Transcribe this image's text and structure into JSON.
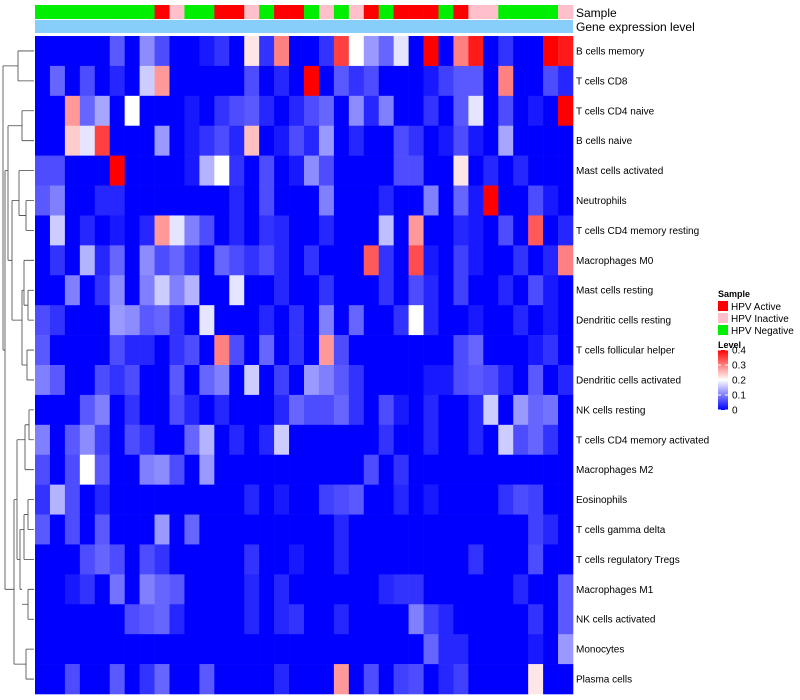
{
  "chart_data": {
    "type": "heatmap",
    "title": "",
    "row_labels": [
      "B cells memory",
      "T cells CD8",
      "T cells CD4 naive",
      "B cells naive",
      "Mast cells activated",
      "Neutrophils",
      "T cells CD4 memory resting",
      "Macrophages M0",
      "Mast cells resting",
      "Dendritic cells resting",
      "T cells follicular helper",
      "Dendritic cells activated",
      "NK cells resting",
      "T cells CD4 memory activated",
      "Macrophages M2",
      "Eosinophils",
      "T cells gamma delta",
      "T cells regulatory  Tregs",
      "Macrophages M1",
      "NK cells activated",
      "Monocytes",
      "Plasma cells"
    ],
    "n_columns": 36,
    "column_annotations": {
      "sample_label": "Sample",
      "expression_label": "Gene expression level",
      "sample_groups": [
        "Negative",
        "Negative",
        "Negative",
        "Negative",
        "Negative",
        "Negative",
        "Negative",
        "Negative",
        "Active",
        "Inactive",
        "Negative",
        "Negative",
        "Active",
        "Active",
        "Inactive",
        "Negative",
        "Active",
        "Active",
        "Negative",
        "Inactive",
        "Negative",
        "Inactive",
        "Active",
        "Negative",
        "Active",
        "Active",
        "Active",
        "Negative",
        "Active",
        "Inactive",
        "Inactive",
        "Negative",
        "Negative",
        "Negative",
        "Negative",
        "Inactive"
      ]
    },
    "values": [
      [
        0,
        0,
        0,
        0,
        0,
        0.07,
        0,
        0.11,
        0.06,
        0,
        0,
        0.02,
        0.04,
        0,
        0.22,
        0.04,
        0.3,
        0,
        0,
        0.04,
        0.35,
        0.2,
        0.12,
        0.08,
        0.18,
        0,
        0.4,
        0,
        0.3,
        0.38,
        0,
        0.04,
        0,
        0.0,
        0.4,
        0.38
      ],
      [
        0,
        0.08,
        0,
        0.06,
        0,
        0.03,
        0,
        0.16,
        0.28,
        0.0,
        0,
        0,
        0,
        0,
        0.06,
        0,
        0.03,
        0,
        0.4,
        0,
        0.07,
        0.04,
        0.06,
        0,
        0,
        0,
        0.02,
        0.05,
        0.07,
        0.07,
        0,
        0.3,
        0,
        0,
        0.06,
        0.03
      ],
      [
        0,
        0,
        0.28,
        0.08,
        0.13,
        0,
        0.2,
        0,
        0,
        0,
        0.02,
        0,
        0.04,
        0.06,
        0.07,
        0.03,
        0,
        0.03,
        0.06,
        0.08,
        0,
        0.11,
        0.03,
        0.1,
        0.0,
        0,
        0.04,
        0,
        0.07,
        0.18,
        0,
        0.06,
        0,
        0.02,
        0,
        0.4
      ],
      [
        0,
        0,
        0.24,
        0.18,
        0.35,
        0,
        0,
        0,
        0.12,
        0,
        0.02,
        0.04,
        0.06,
        0.03,
        0.25,
        0,
        0.02,
        0.06,
        0.03,
        0.12,
        0,
        0.03,
        0,
        0,
        0.06,
        0.04,
        0,
        0.02,
        0.06,
        0.02,
        0,
        0.13,
        0,
        0,
        0,
        0
      ],
      [
        0.06,
        0.06,
        0,
        0,
        0,
        0.4,
        0,
        0,
        0,
        0,
        0.02,
        0.14,
        0.2,
        0.04,
        0,
        0.06,
        0,
        0.02,
        0.11,
        0.06,
        0,
        0,
        0,
        0,
        0.06,
        0.06,
        0,
        0,
        0.22,
        0,
        0.03,
        0,
        0.03,
        0,
        0,
        0
      ],
      [
        0.07,
        0.1,
        0,
        0,
        0.03,
        0.03,
        0,
        0,
        0,
        0,
        0,
        0,
        0,
        0.03,
        0,
        0.06,
        0,
        0,
        0,
        0.1,
        0,
        0,
        0,
        0.03,
        0,
        0,
        0.1,
        0.0,
        0.08,
        0.02,
        0.4,
        0,
        0.0,
        0.06,
        0.02,
        0
      ],
      [
        0,
        0.16,
        0,
        0.03,
        0,
        0.02,
        0,
        0.03,
        0.28,
        0.18,
        0.1,
        0.06,
        0,
        0.03,
        0,
        0.04,
        0.03,
        0,
        0,
        0.03,
        0,
        0,
        0,
        0.15,
        0.0,
        0.28,
        0,
        0,
        0.03,
        0.02,
        0,
        0.06,
        0,
        0.33,
        0,
        0.03
      ],
      [
        0,
        0.04,
        0,
        0.14,
        0.03,
        0.08,
        0,
        0.11,
        0.06,
        0.08,
        0.04,
        0,
        0.08,
        0.06,
        0.04,
        0.06,
        0.03,
        0,
        0.04,
        0,
        0,
        0,
        0.33,
        0.04,
        0,
        0.34,
        0.02,
        0,
        0.05,
        0.02,
        0,
        0,
        0.04,
        0,
        0.03,
        0.3
      ],
      [
        0,
        0,
        0.1,
        0,
        0.04,
        0.11,
        0,
        0.1,
        0.16,
        0.1,
        0.14,
        0,
        0,
        0.18,
        0,
        0,
        0.03,
        0,
        0,
        0.04,
        0,
        0,
        0,
        0.04,
        0,
        0.06,
        0.03,
        0,
        0.05,
        0,
        0,
        0.03,
        0,
        0.06,
        0.02,
        0
      ],
      [
        0.06,
        0.04,
        0,
        0,
        0,
        0.12,
        0.11,
        0.07,
        0.08,
        0.04,
        0,
        0.18,
        0,
        0,
        0,
        0.03,
        0,
        0.04,
        0,
        0.1,
        0,
        0.08,
        0,
        0,
        0.04,
        0.2,
        0.03,
        0,
        0,
        0.02,
        0,
        0,
        0.03,
        0,
        0.02,
        0
      ],
      [
        0.07,
        0,
        0,
        0,
        0,
        0.06,
        0.03,
        0.03,
        0,
        0.04,
        0.06,
        0,
        0.3,
        0.06,
        0,
        0.08,
        0,
        0.04,
        0,
        0.28,
        0.06,
        0,
        0,
        0,
        0,
        0,
        0,
        0,
        0.06,
        0.08,
        0,
        0,
        0,
        0.02,
        0.04,
        0
      ],
      [
        0.1,
        0.07,
        0,
        0,
        0.06,
        0.04,
        0.06,
        0,
        0,
        0.07,
        0,
        0.08,
        0.1,
        0,
        0.16,
        0,
        0.05,
        0,
        0.12,
        0.1,
        0.07,
        0.04,
        0,
        0,
        0,
        0,
        0.02,
        0.02,
        0.06,
        0.07,
        0.06,
        0.03,
        0,
        0.07,
        0,
        0.03
      ],
      [
        0,
        0,
        0,
        0.07,
        0.1,
        0,
        0.04,
        0,
        0,
        0.06,
        0.03,
        0,
        0.03,
        0,
        0,
        0,
        0.03,
        0.08,
        0.06,
        0.06,
        0.08,
        0.04,
        0,
        0.06,
        0.02,
        0,
        0.03,
        0,
        0,
        0.03,
        0.16,
        0,
        0.12,
        0.08,
        0.09,
        0
      ],
      [
        0.1,
        0,
        0.07,
        0.11,
        0.05,
        0,
        0.06,
        0.04,
        0,
        0,
        0.08,
        0.14,
        0,
        0.03,
        0,
        0.03,
        0.16,
        0,
        0,
        0,
        0,
        0,
        0,
        0.04,
        0,
        0,
        0.03,
        0,
        0,
        0.03,
        0,
        0.16,
        0.06,
        0.08,
        0.04,
        0
      ],
      [
        0.06,
        0,
        0.06,
        0.2,
        0.07,
        0,
        0,
        0.1,
        0.11,
        0.06,
        0,
        0.12,
        0,
        0,
        0,
        0,
        0,
        0,
        0,
        0,
        0,
        0,
        0.06,
        0,
        0.04,
        0,
        0,
        0,
        0,
        0,
        0,
        0,
        0,
        0,
        0,
        0
      ],
      [
        0.04,
        0.14,
        0.06,
        0,
        0.03,
        0,
        0,
        0,
        0,
        0,
        0,
        0,
        0,
        0,
        0.03,
        0,
        0.02,
        0,
        0,
        0.05,
        0.06,
        0.07,
        0,
        0,
        0.03,
        0,
        0.02,
        0,
        0,
        0,
        0,
        0.04,
        0.06,
        0.05,
        0,
        0
      ],
      [
        0.07,
        0,
        0.06,
        0,
        0.07,
        0,
        0,
        0,
        0.12,
        0,
        0.08,
        0,
        0,
        0,
        0,
        0,
        0,
        0,
        0,
        0,
        0.03,
        0,
        0,
        0,
        0,
        0,
        0,
        0,
        0,
        0,
        0,
        0,
        0,
        0.05,
        0.03,
        0
      ],
      [
        0,
        0,
        0,
        0.06,
        0.08,
        0.06,
        0,
        0.06,
        0.04,
        0,
        0,
        0,
        0,
        0,
        0.04,
        0,
        0,
        0.02,
        0,
        0,
        0.03,
        0,
        0,
        0,
        0,
        0,
        0,
        0,
        0,
        0.04,
        0,
        0,
        0,
        0.06,
        0,
        0
      ],
      [
        0,
        0,
        0.02,
        0.04,
        0,
        0.09,
        0,
        0.1,
        0.08,
        0.07,
        0,
        0,
        0,
        0,
        0.03,
        0,
        0.03,
        0,
        0,
        0,
        0,
        0,
        0,
        0.03,
        0.04,
        0.04,
        0,
        0,
        0,
        0,
        0,
        0,
        0.03,
        0,
        0,
        0.07
      ],
      [
        0,
        0,
        0,
        0,
        0,
        0,
        0.06,
        0.07,
        0.08,
        0.03,
        0,
        0,
        0,
        0,
        0.03,
        0,
        0.03,
        0.04,
        0,
        0,
        0.03,
        0,
        0,
        0,
        0,
        0.1,
        0.05,
        0.03,
        0,
        0,
        0,
        0,
        0,
        0.04,
        0,
        0.07
      ],
      [
        0,
        0,
        0,
        0,
        0,
        0,
        0,
        0,
        0,
        0,
        0,
        0,
        0,
        0,
        0,
        0,
        0,
        0,
        0,
        0,
        0,
        0,
        0,
        0,
        0,
        0,
        0.08,
        0.03,
        0.03,
        0,
        0,
        0,
        0,
        0.02,
        0,
        0.12
      ],
      [
        0,
        0,
        0.06,
        0,
        0,
        0.07,
        0,
        0.04,
        0.08,
        0,
        0,
        0.07,
        0,
        0,
        0,
        0,
        0.03,
        0,
        0,
        0,
        0.28,
        0,
        0.06,
        0,
        0.05,
        0.06,
        0,
        0.03,
        0.05,
        0,
        0,
        0,
        0,
        0.22,
        0,
        0
      ]
    ],
    "color_scale": {
      "min": 0,
      "max": 0.4,
      "low": "#0000FF",
      "mid": "#FFFFFF",
      "high": "#FF0000",
      "mid_value": 0.2
    },
    "legend": {
      "sample_title": "Sample",
      "sample_entries": [
        {
          "label": "HPV Active",
          "color": "#FF0000"
        },
        {
          "label": "HPV Inactive",
          "color": "#FFC0CB"
        },
        {
          "label": "HPV Negative",
          "color": "#00EE00"
        }
      ],
      "level_title": "Level",
      "level_ticks": [
        "0.4",
        "0.3",
        "0.2",
        "0.1",
        "0"
      ],
      "level_tick_values": [
        0.4,
        0.3,
        0.2,
        0.1,
        0
      ]
    },
    "group_colors": {
      "Active": "#FF0000",
      "Inactive": "#FFC0CB",
      "Negative": "#00EE00"
    },
    "expression_bar_color": "#87CEFA"
  }
}
